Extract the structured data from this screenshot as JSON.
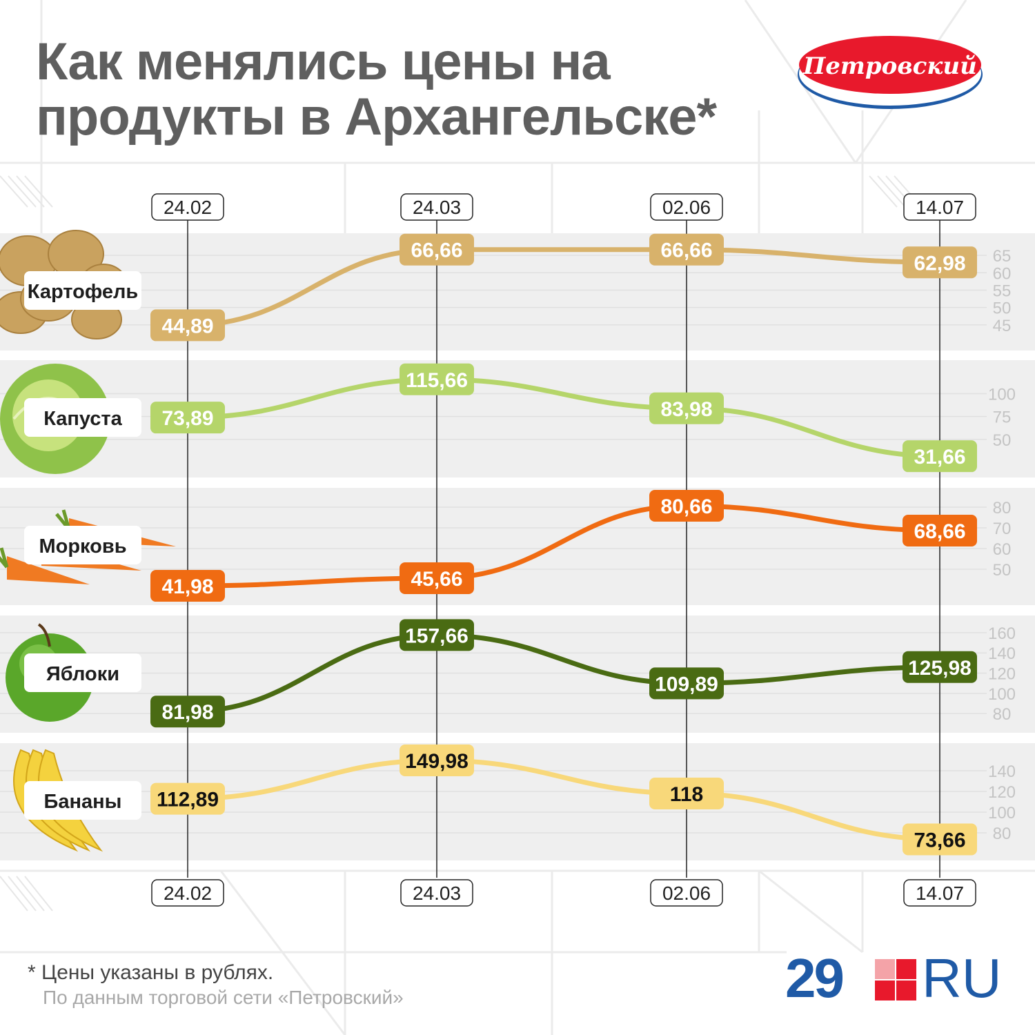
{
  "title": {
    "line1": "Как менялись цены на",
    "line2": "продукты в Архангельске*"
  },
  "logo": {
    "text": "Петровский"
  },
  "footer": {
    "note": "* Цены указаны в рублях.",
    "source": "По данным торговой сети «Петровский»",
    "brand_number": "29",
    "brand_suffix": "RU"
  },
  "colors": {
    "potato": "#d8b26b",
    "cabbage": "#b5d56a",
    "carrot": "#f06b12",
    "apple": "#4a6b13",
    "banana": "#f8d87a",
    "brand": "#1f5aa6",
    "brand_red": "#e8192c"
  },
  "chart_data": {
    "type": "line",
    "dates": [
      "24.02",
      "24.03",
      "02.06",
      "14.07"
    ],
    "series": [
      {
        "name": "Картофель",
        "icon": "potato-icon",
        "values": [
          44.89,
          66.66,
          66.66,
          62.98
        ],
        "labels": [
          "44,89",
          "66,66",
          "66,66",
          "62,98"
        ],
        "ylim": [
          42,
          67
        ],
        "ticks": [
          45,
          50,
          55,
          60,
          65
        ],
        "color": "#d8b26b",
        "label_text_color": "#ffffff"
      },
      {
        "name": "Капуста",
        "icon": "cabbage-icon",
        "values": [
          73.89,
          115.66,
          83.98,
          31.66
        ],
        "labels": [
          "73,89",
          "115,66",
          "83,98",
          "31,66"
        ],
        "ylim": [
          25,
          120
        ],
        "ticks": [
          50,
          75,
          100
        ],
        "color": "#b5d56a",
        "label_text_color": "#ffffff"
      },
      {
        "name": "Морковь",
        "icon": "carrot-icon",
        "values": [
          41.98,
          45.66,
          80.66,
          68.66
        ],
        "labels": [
          "41,98",
          "45,66",
          "80,66",
          "68,66"
        ],
        "ylim": [
          40,
          82
        ],
        "ticks": [
          50,
          60,
          70,
          80
        ],
        "color": "#f06b12",
        "label_text_color": "#ffffff"
      },
      {
        "name": "Яблоки",
        "icon": "apple-icon",
        "values": [
          81.98,
          157.66,
          109.89,
          125.98
        ],
        "labels": [
          "81,98",
          "157,66",
          "109,89",
          "125,98"
        ],
        "ylim": [
          76,
          162
        ],
        "ticks": [
          80,
          100,
          120,
          140,
          160
        ],
        "color": "#4a6b13",
        "label_text_color": "#ffffff"
      },
      {
        "name": "Бананы",
        "icon": "banana-icon",
        "values": [
          112.89,
          149.98,
          118,
          73.66
        ],
        "labels": [
          "112,89",
          "149,98",
          "118",
          "73,66"
        ],
        "ylim": [
          68,
          152
        ],
        "ticks": [
          80,
          100,
          120,
          140
        ],
        "color": "#f8d87a",
        "label_text_color": "#111111"
      }
    ]
  }
}
